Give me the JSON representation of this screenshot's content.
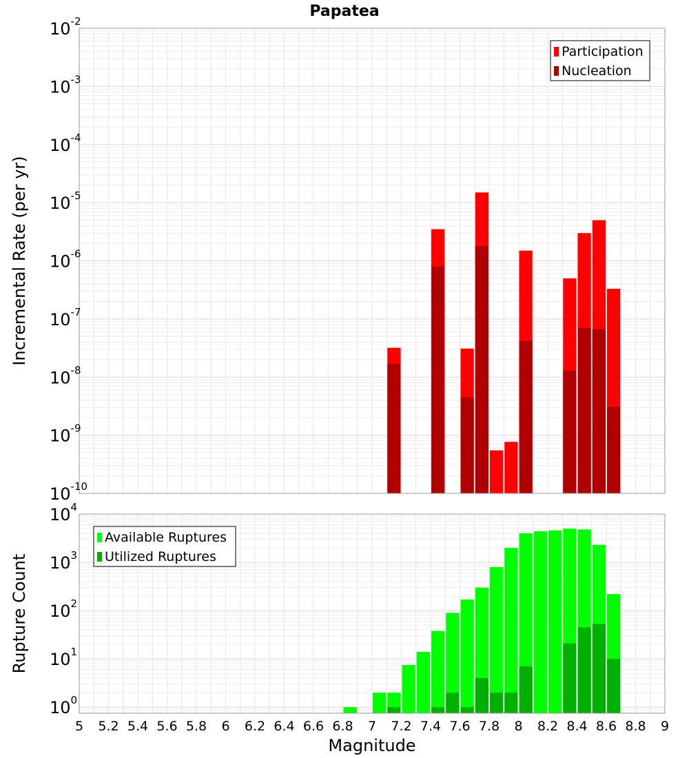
{
  "chart_data": [
    {
      "type": "bar",
      "title": "Papatea",
      "xlabel": "Magnitude",
      "ylabel": "Incremental Rate (per yr)",
      "yscale": "log",
      "ylim": [
        1e-10,
        0.01
      ],
      "xlim": [
        5,
        9
      ],
      "bin_width": 0.1,
      "grid": true,
      "legend_position": "top-right",
      "x_ticks": [
        "5",
        "5.2",
        "5.4",
        "5.6",
        "5.8",
        "6",
        "6.2",
        "6.4",
        "6.6",
        "6.8",
        "7",
        "7.2",
        "7.4",
        "7.6",
        "7.8",
        "8",
        "8.2",
        "8.4",
        "8.6",
        "8.8",
        "9"
      ],
      "y_ticks": [
        {
          "base": "10",
          "exp": "-2"
        },
        {
          "base": "10",
          "exp": "-3"
        },
        {
          "base": "10",
          "exp": "-4"
        },
        {
          "base": "10",
          "exp": "-5"
        },
        {
          "base": "10",
          "exp": "-6"
        },
        {
          "base": "10",
          "exp": "-7"
        },
        {
          "base": "10",
          "exp": "-8"
        },
        {
          "base": "10",
          "exp": "-9"
        },
        {
          "base": "10",
          "exp": "-10"
        }
      ],
      "series": [
        {
          "name": "Participation",
          "color": "#ff0000",
          "x": [
            7.15,
            7.45,
            7.65,
            7.75,
            7.85,
            7.95,
            8.05,
            8.35,
            8.45,
            8.55,
            8.65
          ],
          "values": [
            3.2e-08,
            3.5e-06,
            3.1e-08,
            1.5e-05,
            5.5e-10,
            7.7e-10,
            1.5e-06,
            5e-07,
            3e-06,
            5e-06,
            3.3e-07
          ]
        },
        {
          "name": "Nucleation",
          "color": "#b00000",
          "x": [
            7.15,
            7.45,
            7.65,
            7.75,
            8.05,
            8.35,
            8.45,
            8.55,
            8.65
          ],
          "values": [
            1.7e-08,
            8e-07,
            4.5e-09,
            1.8e-06,
            4.2e-08,
            1.3e-08,
            7e-08,
            6.7e-08,
            3.1e-09
          ]
        }
      ]
    },
    {
      "type": "bar",
      "xlabel": "Magnitude",
      "ylabel": "Rupture Count",
      "yscale": "log",
      "ylim": [
        0.75,
        10000
      ],
      "xlim": [
        5,
        9
      ],
      "bin_width": 0.1,
      "grid": true,
      "legend_position": "top-left",
      "y_ticks": [
        {
          "base": "10",
          "exp": "4"
        },
        {
          "base": "10",
          "exp": "3"
        },
        {
          "base": "10",
          "exp": "2"
        },
        {
          "base": "10",
          "exp": "1"
        },
        {
          "base": "10",
          "exp": "0"
        }
      ],
      "series": [
        {
          "name": "Available Ruptures",
          "color": "#00ff00",
          "x": [
            6.85,
            7.05,
            7.15,
            7.25,
            7.35,
            7.45,
            7.55,
            7.65,
            7.75,
            7.85,
            7.95,
            8.05,
            8.15,
            8.25,
            8.35,
            8.45,
            8.55,
            8.65
          ],
          "values": [
            1,
            2,
            2,
            7.5,
            14,
            38,
            90,
            170,
            300,
            800,
            2000,
            4000,
            4400,
            4600,
            5000,
            4800,
            2300,
            220
          ]
        },
        {
          "name": "Utilized Ruptures",
          "color": "#00b000",
          "x": [
            7.15,
            7.45,
            7.55,
            7.65,
            7.75,
            7.85,
            7.95,
            8.05,
            8.35,
            8.45,
            8.55,
            8.65
          ],
          "values": [
            1,
            1,
            2,
            1,
            4,
            2,
            2,
            7,
            21,
            45,
            53,
            10
          ]
        }
      ]
    }
  ]
}
